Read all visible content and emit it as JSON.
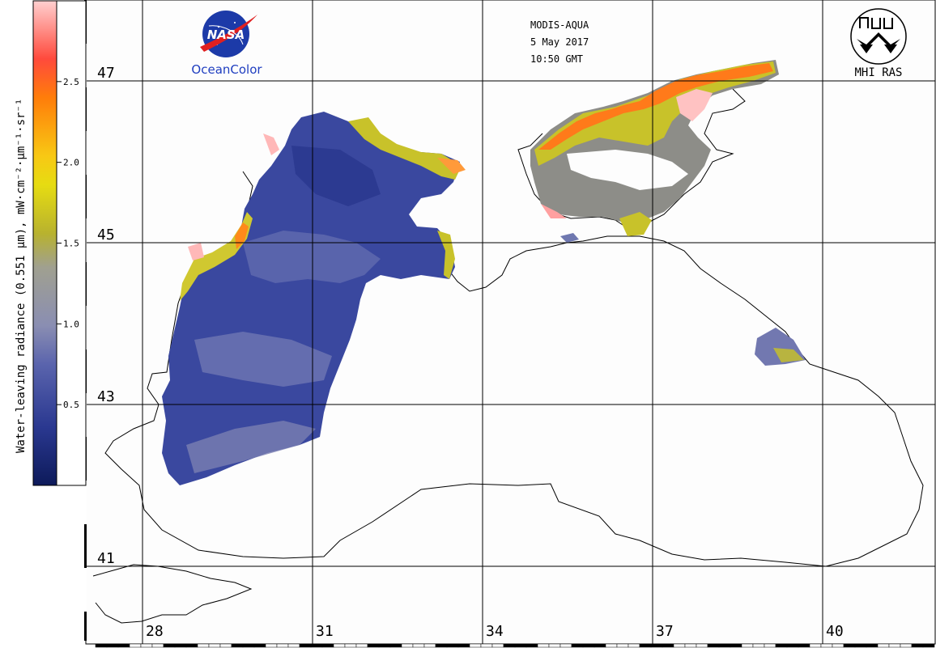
{
  "header": {
    "sensor": "MODIS-AQUA",
    "date": "5 May 2017",
    "time": "10:50 GMT"
  },
  "logos": {
    "nasa": "NASA",
    "oceancolor": "OceanColor",
    "mhi": "MHI RAS"
  },
  "colorbar": {
    "title": "Water-leaving radiance (0.551 µm), mW·cm⁻²·µm⁻¹·sr⁻¹",
    "ticks": [
      {
        "value": 0.5,
        "label": "0.5"
      },
      {
        "value": 1.0,
        "label": "1.0"
      },
      {
        "value": 1.5,
        "label": "1.5"
      },
      {
        "value": 2.0,
        "label": "2.0"
      },
      {
        "value": 2.5,
        "label": "2.5"
      }
    ],
    "range": [
      0,
      3
    ],
    "colors": [
      "#0d1a5a",
      "#3f4ea6",
      "#7880b3",
      "#a6a6a0",
      "#b7b233",
      "#ece614",
      "#f8c814",
      "#ff7d0a",
      "#ff4a3c",
      "#ffa8a8",
      "#ffd6d6"
    ]
  },
  "grid": {
    "latitudes": [
      {
        "value": 47,
        "label": "47"
      },
      {
        "value": 45,
        "label": "45"
      },
      {
        "value": 43,
        "label": "43"
      },
      {
        "value": 41,
        "label": "41"
      }
    ],
    "longitudes": [
      {
        "value": 28,
        "label": "28"
      },
      {
        "value": 31,
        "label": "31"
      },
      {
        "value": 34,
        "label": "34"
      },
      {
        "value": 37,
        "label": "37"
      },
      {
        "value": 40,
        "label": "40"
      }
    ]
  },
  "colors": {
    "sea_low": "#3f4ea6",
    "sea_deep": "#2a3790",
    "sea_mid": "#6f78b0",
    "coast_yellow": "#c8c22a",
    "coast_orange": "#ff7d0a",
    "coast_pink": "#ffb0b0",
    "azov_gray": "#8d8d88"
  }
}
